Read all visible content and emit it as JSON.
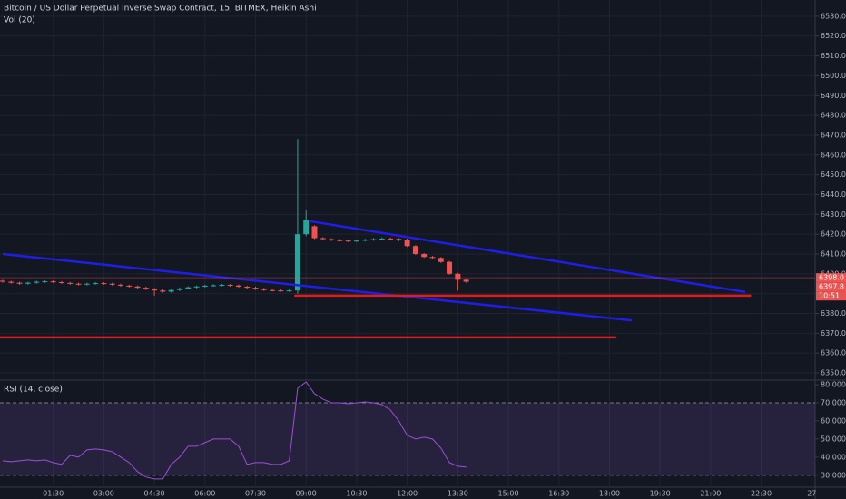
{
  "chart_data": {
    "type": "candlestick",
    "title": "Bitcoin / US Dollar Perpetual Inverse Swap Contract, 15, BITMEX, Heikin Ashi",
    "volume_label": "Vol (20)",
    "x": [
      0,
      0.25,
      0.5,
      0.75,
      1,
      1.25,
      1.5,
      1.75,
      2,
      2.25,
      2.5,
      2.75,
      3,
      3.25,
      3.5,
      3.75,
      4,
      4.25,
      4.5,
      4.75,
      5,
      5.25,
      5.5,
      5.75,
      6,
      6.25,
      6.5,
      6.75,
      7,
      7.25,
      7.5,
      7.75,
      8,
      8.25,
      8.5,
      8.75,
      9,
      9.25,
      9.5,
      9.75,
      10,
      10.25,
      10.5,
      10.75,
      11,
      11.25,
      11.5,
      11.75,
      12,
      12.25,
      12.5,
      12.75,
      13,
      13.25,
      13.5,
      13.75
    ],
    "open": [
      6396.5,
      6396,
      6395.5,
      6395,
      6395.5,
      6396,
      6396.2,
      6395.8,
      6395.4,
      6395,
      6394.6,
      6395,
      6395.3,
      6395,
      6394.5,
      6394,
      6393.6,
      6393,
      6392.3,
      6391.6,
      6391,
      6391.8,
      6392.6,
      6393.2,
      6393.6,
      6394,
      6394.2,
      6394.4,
      6394.1,
      6393.5,
      6393,
      6392.4,
      6391.8,
      6391.6,
      6391.5,
      6391.6,
      6420,
      6424,
      6418,
      6417.5,
      6417,
      6416.8,
      6416.5,
      6416.8,
      6417.2,
      6417.5,
      6417.8,
      6417.6,
      6417.3,
      6414,
      6410,
      6408.5,
      6408,
      6406,
      6400,
      6397
    ],
    "high": [
      6397,
      6396.5,
      6396,
      6396,
      6396.5,
      6396.7,
      6396.7,
      6396.3,
      6395.9,
      6395.5,
      6395.5,
      6395.8,
      6395.8,
      6395.5,
      6395,
      6394.5,
      6394.1,
      6393.5,
      6392.8,
      6392.1,
      6392.3,
      6393.1,
      6393.7,
      6394.1,
      6394.5,
      6394.7,
      6394.9,
      6394.9,
      6394.6,
      6394,
      6393.5,
      6392.9,
      6392.3,
      6392.1,
      6392.1,
      6468,
      6432,
      6424.5,
      6418.5,
      6418,
      6417.5,
      6417.3,
      6417.3,
      6417.7,
      6418,
      6418.3,
      6418.3,
      6418.1,
      6417.8,
      6414.5,
      6410.5,
      6409,
      6408.5,
      6406.5,
      6400.5,
      6397.5
    ],
    "low": [
      6395.5,
      6395,
      6394.5,
      6394.5,
      6395,
      6395.5,
      6395.3,
      6394.9,
      6394.5,
      6394.1,
      6394.1,
      6394.5,
      6394.5,
      6394,
      6393.5,
      6393.1,
      6392.5,
      6391.8,
      6389,
      6390.5,
      6390.5,
      6391.3,
      6392.1,
      6392.7,
      6393.1,
      6393.5,
      6393.7,
      6393.6,
      6393,
      6392.5,
      6391.9,
      6391.3,
      6391.1,
      6391,
      6391,
      6390,
      6419,
      6417.5,
      6417,
      6416.5,
      6416.3,
      6416,
      6416,
      6416.3,
      6416.7,
      6417,
      6417.1,
      6416.5,
      6413.5,
      6409.5,
      6408,
      6407.5,
      6405.5,
      6399.5,
      6391.5,
      6395.5
    ],
    "close": [
      6396,
      6395.5,
      6395,
      6395.5,
      6396,
      6396.2,
      6395.8,
      6395.4,
      6395,
      6394.6,
      6395,
      6395.3,
      6395,
      6394.5,
      6394,
      6393.6,
      6393,
      6392.3,
      6391.6,
      6391,
      6391.8,
      6392.6,
      6393.2,
      6393.6,
      6394,
      6394.2,
      6394.4,
      6394.1,
      6393.5,
      6393,
      6392.4,
      6391.8,
      6391.6,
      6391.5,
      6391.6,
      6420,
      6427,
      6418,
      6417.5,
      6417,
      6416.8,
      6416.5,
      6416.8,
      6417.2,
      6417.5,
      6417.8,
      6417.6,
      6417,
      6414,
      6410,
      6408.5,
      6408,
      6406,
      6400,
      6397,
      6396
    ],
    "up_color": "#26a69a",
    "down_color": "#ef5350",
    "xlim": [
      -0.08,
      24.1
    ],
    "xticks": [
      {
        "value": 1.5,
        "label": "01:30"
      },
      {
        "value": 3,
        "label": "03:00"
      },
      {
        "value": 4.5,
        "label": "04:30"
      },
      {
        "value": 6,
        "label": "06:00"
      },
      {
        "value": 7.5,
        "label": "07:30"
      },
      {
        "value": 9,
        "label": "09:00"
      },
      {
        "value": 10.5,
        "label": "10:30"
      },
      {
        "value": 12,
        "label": "12:00"
      },
      {
        "value": 13.5,
        "label": "13:30"
      },
      {
        "value": 15,
        "label": "15:00"
      },
      {
        "value": 16.5,
        "label": "16:30"
      },
      {
        "value": 18,
        "label": "18:00"
      },
      {
        "value": 19.5,
        "label": "19:30"
      },
      {
        "value": 21,
        "label": "21:00"
      },
      {
        "value": 22.5,
        "label": "22:30"
      },
      {
        "value": 24,
        "label": "27"
      }
    ],
    "ylim": [
      6346.8,
      6538.2
    ],
    "yticks": [
      {
        "value": 6350,
        "label": "6350.0"
      },
      {
        "value": 6360,
        "label": "6360.0"
      },
      {
        "value": 6370,
        "label": "6370.0"
      },
      {
        "value": 6380,
        "label": "6380.0"
      },
      {
        "value": 6390,
        "label": "6390.0"
      },
      {
        "value": 6400,
        "label": "6400.0"
      },
      {
        "value": 6410,
        "label": "6410.0"
      },
      {
        "value": 6420,
        "label": "6420.0"
      },
      {
        "value": 6430,
        "label": "6430.0"
      },
      {
        "value": 6440,
        "label": "6440.0"
      },
      {
        "value": 6450,
        "label": "6450.0"
      },
      {
        "value": 6460,
        "label": "6460.0"
      },
      {
        "value": 6470,
        "label": "6470.0"
      },
      {
        "value": 6480,
        "label": "6480.0"
      },
      {
        "value": 6490,
        "label": "6490.0"
      },
      {
        "value": 6500,
        "label": "6500.0"
      },
      {
        "value": 6510,
        "label": "6510.0"
      },
      {
        "value": 6520,
        "label": "6520.0"
      },
      {
        "value": 6530,
        "label": "6530.0"
      }
    ],
    "grid": true,
    "price_labels": [
      {
        "value": 6398.0,
        "label": "6398.0",
        "color": "#ef5350"
      },
      {
        "value": 6397.8,
        "label": "6397.8",
        "color": "#ef5350"
      }
    ],
    "countdown": "10:51",
    "trendlines": [
      {
        "color": "#1e1ee6",
        "x": [
          0,
          18.66
        ],
        "y": [
          6410,
          6376.5
        ]
      },
      {
        "color": "#1e1ee6",
        "x": [
          9.13,
          22.03
        ],
        "y": [
          6426.5,
          6390.8
        ]
      },
      {
        "color": "#e01b1b",
        "x": [
          8.65,
          22.2
        ],
        "y": [
          6389,
          6389
        ]
      },
      {
        "color": "#e01b1b",
        "x": [
          -0.08,
          18.2
        ],
        "y": [
          6367.9,
          6367.9
        ]
      }
    ],
    "rsi": {
      "label": "RSI (14, close)",
      "color": "#9c4fd6",
      "values": [
        38,
        37.5,
        38,
        38.5,
        38,
        38.5,
        37,
        36,
        41,
        40,
        44,
        44.5,
        44,
        43,
        40,
        37,
        32,
        29,
        28,
        28,
        36,
        40,
        46,
        46,
        48,
        50,
        50,
        50,
        46,
        36,
        37,
        37,
        36,
        36,
        38,
        78,
        81.5,
        75,
        72,
        70,
        70,
        69.5,
        70,
        70.5,
        70,
        69,
        66,
        60,
        52,
        50,
        51,
        50,
        45,
        37,
        35,
        34.5
      ],
      "ylim": [
        23.4,
        82
      ],
      "yticks": [
        {
          "value": 30,
          "label": "30.0000"
        },
        {
          "value": 40,
          "label": "40.0000"
        },
        {
          "value": 50,
          "label": "50.0000"
        },
        {
          "value": 60,
          "label": "60.0000"
        },
        {
          "value": 70,
          "label": "70.0000"
        },
        {
          "value": 80,
          "label": "80.0000"
        }
      ],
      "band": [
        30,
        70
      ]
    }
  }
}
